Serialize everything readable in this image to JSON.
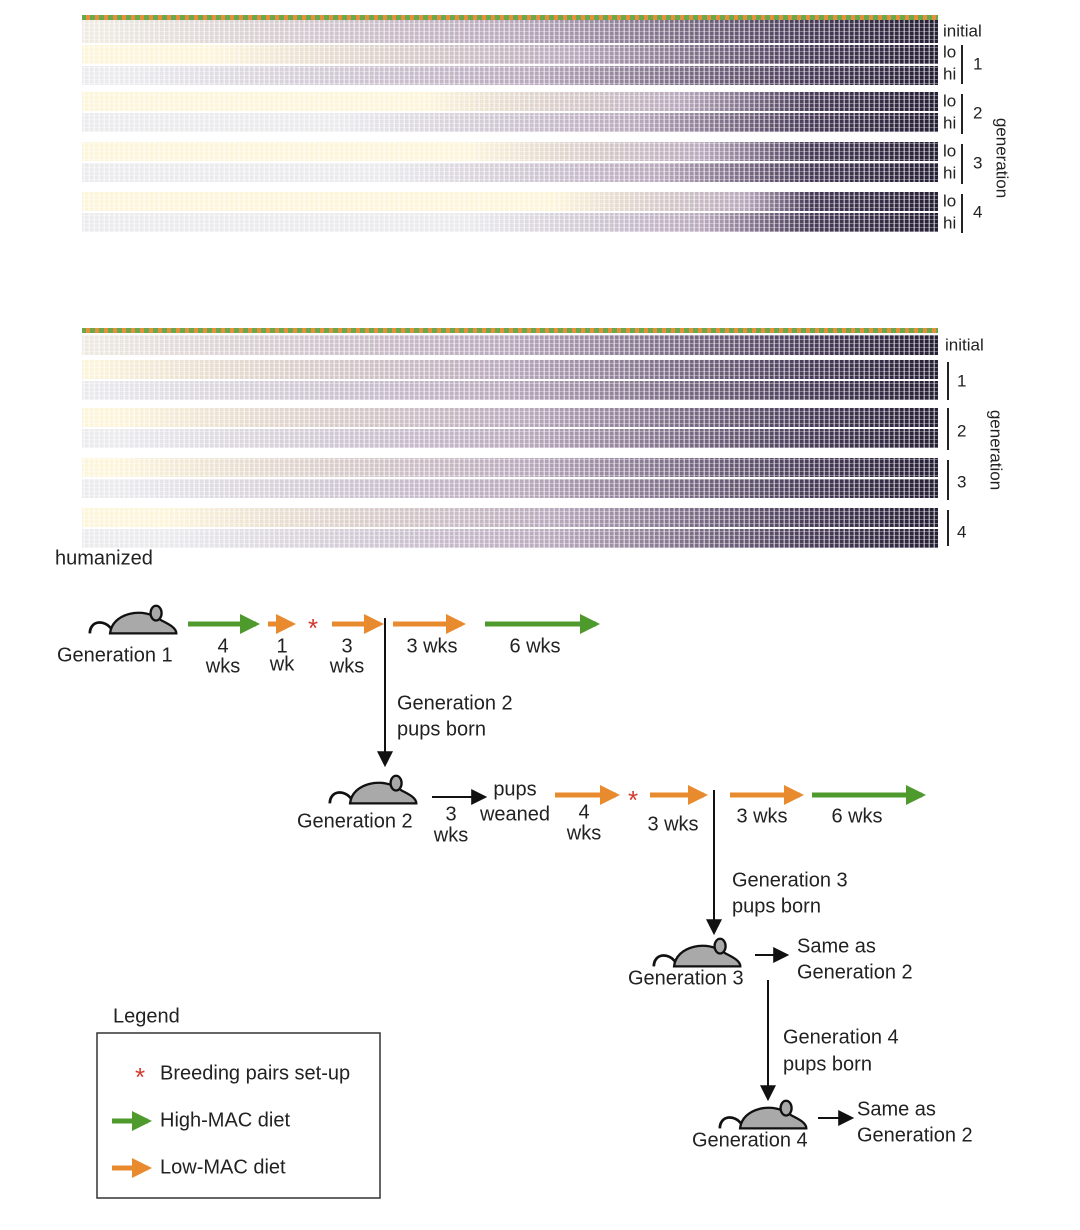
{
  "heatmap_top": {
    "initial": "initial",
    "groups": [
      {
        "generation": "1",
        "rows": [
          "lo",
          "hi"
        ]
      },
      {
        "generation": "2",
        "rows": [
          "lo",
          "hi"
        ]
      },
      {
        "generation": "3",
        "rows": [
          "lo",
          "hi"
        ]
      },
      {
        "generation": "4",
        "rows": [
          "lo",
          "hi"
        ]
      }
    ],
    "axis_label": "generation"
  },
  "heatmap_bottom": {
    "initial": "initial",
    "groups": [
      "1",
      "2",
      "3",
      "4"
    ],
    "axis_label": "generation",
    "caption": "humanized"
  },
  "timeline": {
    "marker": "*",
    "gen1": {
      "label": "Generation 1",
      "steps": [
        [
          "4",
          "wks"
        ],
        [
          "1",
          "wk"
        ],
        [
          "3",
          "wks"
        ],
        [
          "3 wks"
        ],
        [
          "6 wks"
        ]
      ],
      "birth": [
        "Generation 2",
        "pups born"
      ]
    },
    "gen2": {
      "label": "Generation 2",
      "steps": [
        [
          "3",
          "wks"
        ],
        [
          "pups",
          "weaned"
        ],
        [
          "4",
          "wks"
        ],
        [
          "3 wks"
        ],
        [
          "3 wks"
        ],
        [
          "6 wks"
        ]
      ],
      "birth": [
        "Generation 3",
        "pups born"
      ]
    },
    "gen3": {
      "label": "Generation 3",
      "note": [
        "Same as",
        "Generation 2"
      ],
      "birth": [
        "Generation 4",
        "pups born"
      ]
    },
    "gen4": {
      "label": "Generation 4",
      "note": [
        "Same as",
        "Generation 2"
      ]
    }
  },
  "legend": {
    "title": "Legend",
    "items": [
      "Breeding pairs set-up",
      "High-MAC diet",
      "Low-MAC diet"
    ]
  }
}
